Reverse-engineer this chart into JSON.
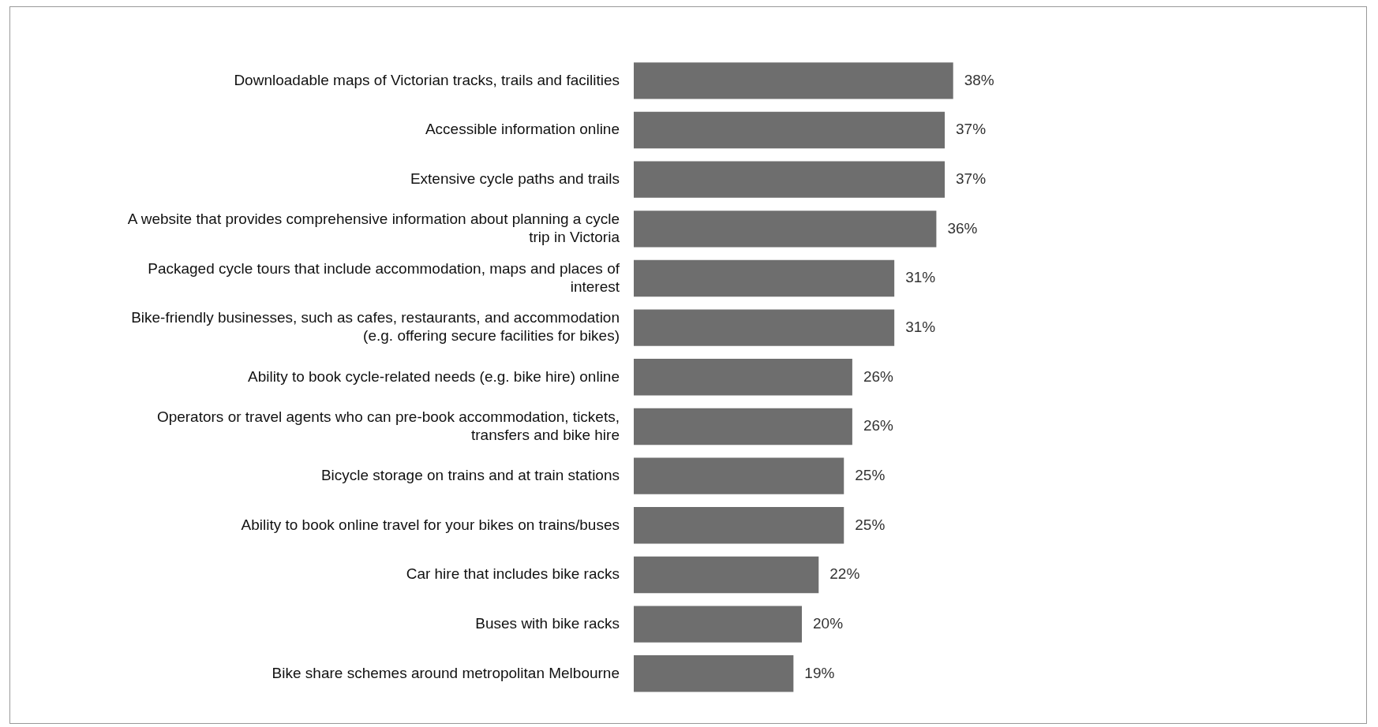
{
  "chart_data": {
    "type": "bar",
    "orientation": "horizontal",
    "categories": [
      "Downloadable maps of Victorian tracks, trails and facilities",
      "Accessible information online",
      "Extensive cycle paths and trails",
      "A website that provides comprehensive information about planning a cycle trip in Victoria",
      "Packaged cycle tours that include accommodation, maps and places of interest",
      "Bike-friendly businesses, such as cafes, restaurants, and accommodation (e.g. offering secure facilities for bikes)",
      "Ability to book cycle-related needs (e.g. bike hire) online",
      "Operators or travel agents who can pre-book accommodation, tickets, transfers and bike hire",
      "Bicycle storage on trains and at train stations",
      "Ability to book online travel for your bikes on trains/buses",
      "Car hire that includes bike racks",
      "Buses with bike racks",
      "Bike share schemes around metropolitan Melbourne"
    ],
    "values": [
      38,
      37,
      37,
      36,
      31,
      31,
      26,
      26,
      25,
      25,
      22,
      20,
      19
    ],
    "value_labels": [
      "38%",
      "37%",
      "37%",
      "36%",
      "31%",
      "31%",
      "26%",
      "26%",
      "25%",
      "25%",
      "22%",
      "20%",
      "19%"
    ],
    "color": "#6e6e6e",
    "tick_labels": "y",
    "grid": false,
    "legend": false
  }
}
